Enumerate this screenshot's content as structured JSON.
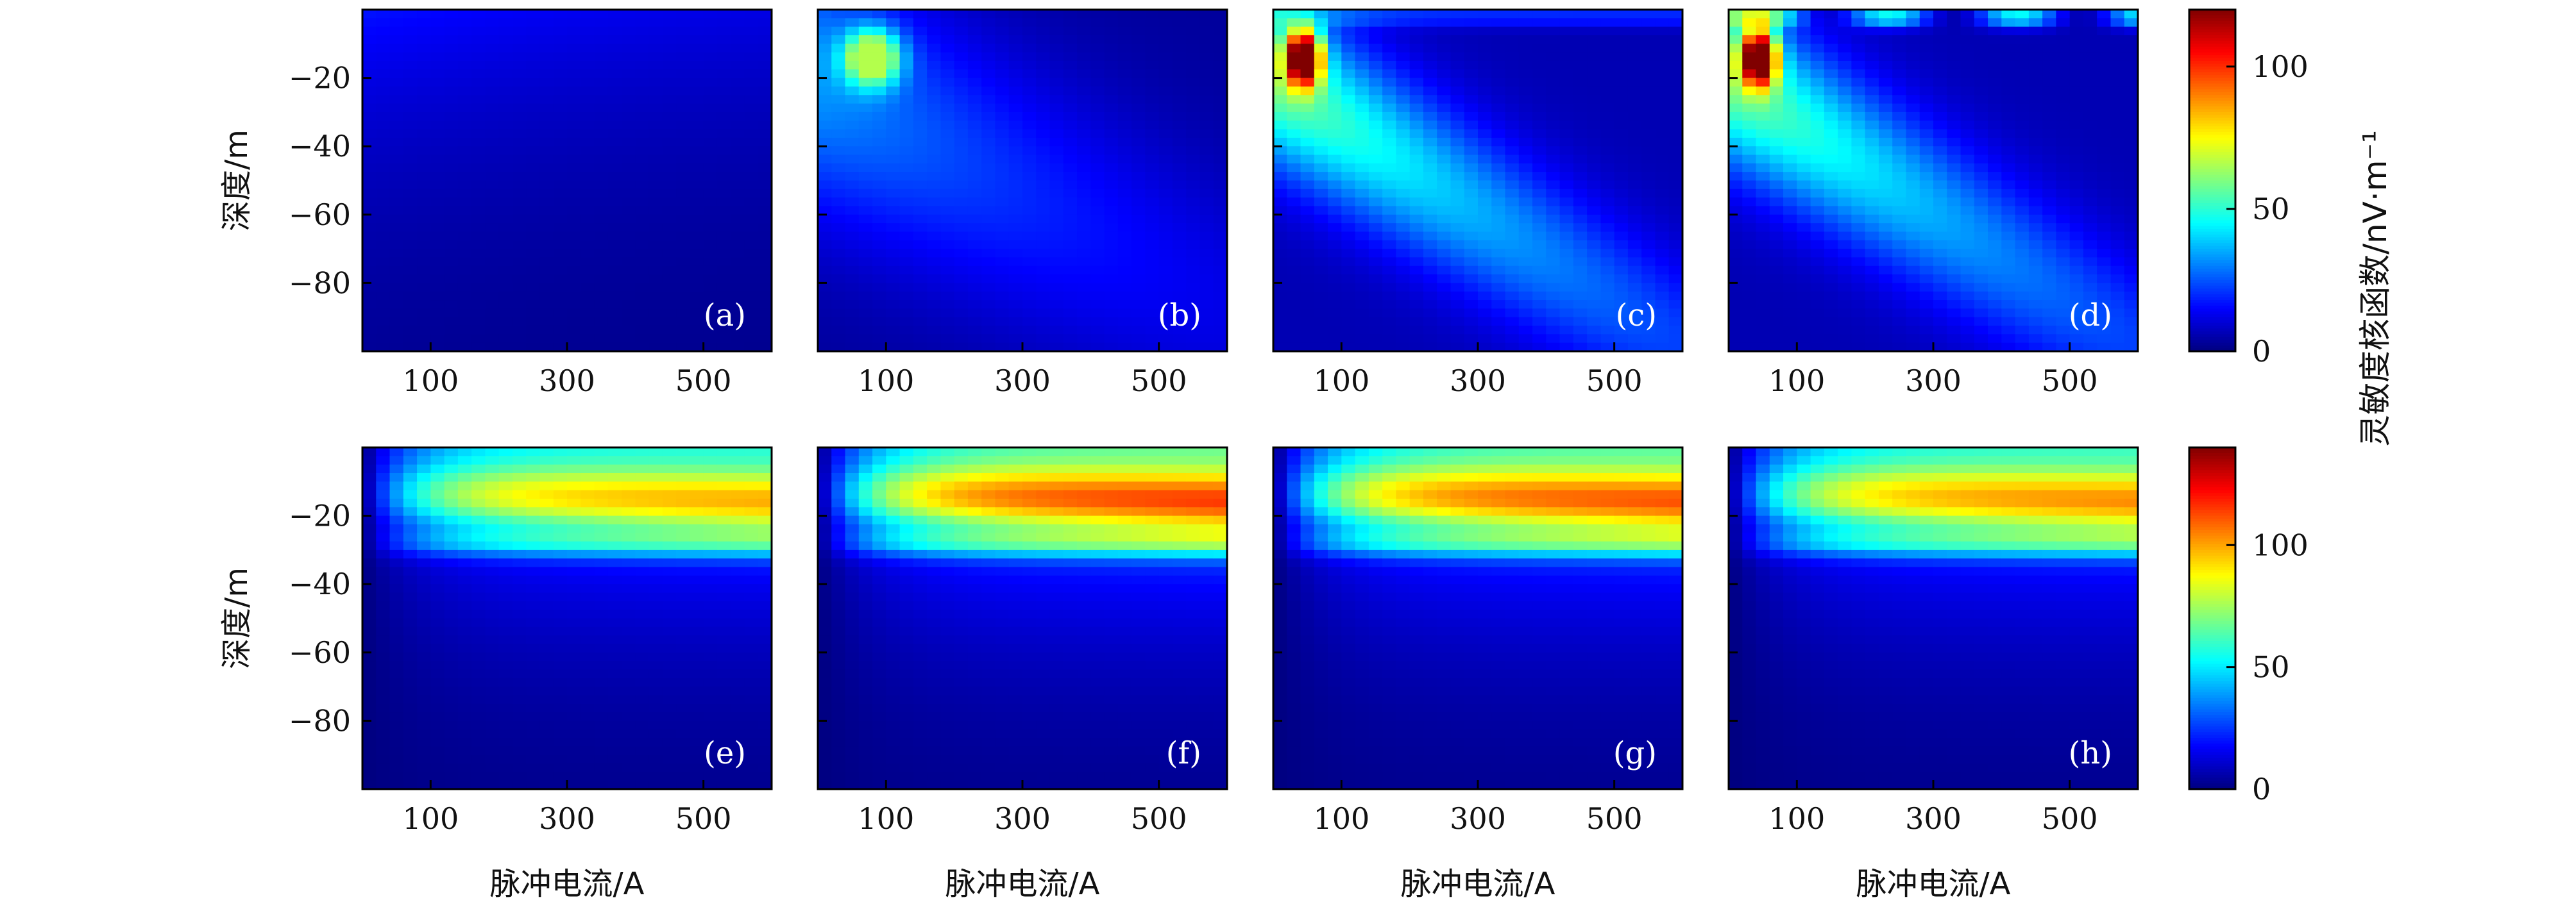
{
  "chart_data": {
    "type": "heatmap",
    "rows": [
      {
        "colorbar": {
          "ticks": [
            0,
            50,
            100
          ],
          "vmin": 0,
          "vmax": 120
        },
        "ylabel": "深度/m",
        "panels": [
          {
            "label": "(a)",
            "scale": 0.16,
            "mode": "a"
          },
          {
            "label": "(b)",
            "scale": 0.55,
            "mode": "b"
          },
          {
            "label": "(c)",
            "scale": 1.0,
            "mode": "c"
          },
          {
            "label": "(d)",
            "scale": 1.0,
            "mode": "d"
          }
        ]
      },
      {
        "colorbar": {
          "ticks": [
            0,
            50,
            100
          ],
          "vmin": 0,
          "vmax": 140
        },
        "ylabel": "深度/m",
        "panels": [
          {
            "label": "(e)",
            "scale": 0.86,
            "mode": "e"
          },
          {
            "label": "(f)",
            "scale": 1.0,
            "mode": "e"
          },
          {
            "label": "(g)",
            "scale": 0.97,
            "mode": "e"
          },
          {
            "label": "(h)",
            "scale": 0.9,
            "mode": "e"
          }
        ]
      }
    ],
    "xlabel": "脉冲电流/A",
    "xlim": [
      0,
      600
    ],
    "xticks": [
      100,
      300,
      500
    ],
    "ylim": [
      -100,
      0
    ],
    "yticks": [
      -20,
      -40,
      -60,
      -80
    ],
    "ytick_labels": [
      "−20",
      "−40",
      "−60",
      "−80"
    ],
    "colorbar_label": "灵敏度核函数/nV·m⁻¹",
    "colormap": "jet"
  }
}
